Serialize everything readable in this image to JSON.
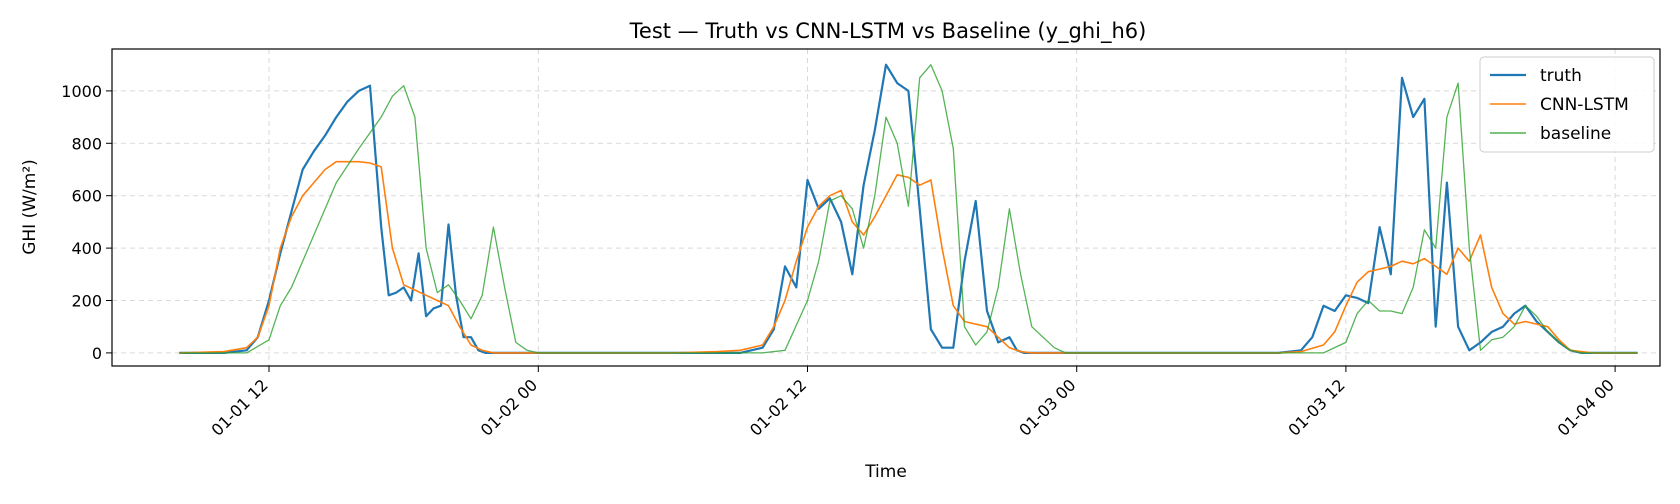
{
  "chart_data": {
    "type": "line",
    "title": "Test — Truth vs CNN-LSTM vs Baseline (y_ghi_h6)",
    "xlabel": "Time",
    "ylabel": "GHI (W/m²)",
    "xlim": [
      "01-01 05",
      "01-04 02"
    ],
    "ylim": [
      -50,
      1160
    ],
    "grid": true,
    "legend_position": "top-right",
    "x_ticks": [
      {
        "label": "01-01 12",
        "hour": 12
      },
      {
        "label": "01-02 00",
        "hour": 24
      },
      {
        "label": "01-02 12",
        "hour": 36
      },
      {
        "label": "01-03 00",
        "hour": 48
      },
      {
        "label": "01-03 12",
        "hour": 60
      },
      {
        "label": "01-04 00",
        "hour": 72
      }
    ],
    "y_ticks": [
      0,
      200,
      400,
      600,
      800,
      1000
    ],
    "series": [
      {
        "name": "truth",
        "color": "#1f77b4",
        "x": [
          "01-01 08:00",
          "01-01 10:00",
          "01-01 11:00",
          "01-01 11:30",
          "01-01 12:00",
          "01-01 12:30",
          "01-01 13:00",
          "01-01 13:30",
          "01-01 14:00",
          "01-01 14:30",
          "01-01 15:00",
          "01-01 15:30",
          "01-01 16:00",
          "01-01 16:30",
          "01-01 17:00",
          "01-01 17:20",
          "01-01 17:40",
          "01-01 18:00",
          "01-01 18:20",
          "01-01 18:40",
          "01-01 19:00",
          "01-01 19:20",
          "01-01 19:40",
          "01-01 20:00",
          "01-01 20:20",
          "01-01 20:40",
          "01-01 21:00",
          "01-01 21:20",
          "01-01 21:40",
          "01-01 22:00",
          "01-01 22:20",
          "01-01 22:40",
          "01-01 23:00",
          "01-01 23:30",
          "01-02 00:00",
          "01-02 06:00",
          "01-02 09:00",
          "01-02 10:00",
          "01-02 10:30",
          "01-02 11:00",
          "01-02 11:30",
          "01-02 12:00",
          "01-02 12:30",
          "01-02 13:00",
          "01-02 13:30",
          "01-02 14:00",
          "01-02 14:30",
          "01-02 15:00",
          "01-02 15:30",
          "01-02 16:00",
          "01-02 16:30",
          "01-02 17:00",
          "01-02 17:30",
          "01-02 18:00",
          "01-02 18:30",
          "01-02 19:00",
          "01-02 19:30",
          "01-02 20:00",
          "01-02 20:30",
          "01-02 21:00",
          "01-02 21:20",
          "01-02 21:40",
          "01-02 22:00",
          "01-02 22:30",
          "01-02 23:00",
          "01-02 23:30",
          "01-03 00:00",
          "01-03 06:00",
          "01-03 09:00",
          "01-03 10:00",
          "01-03 10:30",
          "01-03 11:00",
          "01-03 11:30",
          "01-03 12:00",
          "01-03 12:30",
          "01-03 13:00",
          "01-03 13:30",
          "01-03 14:00",
          "01-03 14:30",
          "01-03 15:00",
          "01-03 15:30",
          "01-03 16:00",
          "01-03 16:30",
          "01-03 17:00",
          "01-03 17:30",
          "01-03 18:00",
          "01-03 18:30",
          "01-03 19:00",
          "01-03 19:30",
          "01-03 20:00",
          "01-03 20:30",
          "01-03 21:00",
          "01-03 21:30",
          "01-03 22:00",
          "01-03 22:30",
          "01-03 23:00",
          "01-03 23:30",
          "01-04 00:00",
          "01-04 01:00"
        ],
        "values": [
          0,
          0,
          10,
          60,
          200,
          380,
          540,
          700,
          770,
          830,
          900,
          960,
          1000,
          1020,
          480,
          220,
          230,
          250,
          200,
          380,
          140,
          170,
          180,
          490,
          220,
          60,
          60,
          10,
          0,
          0,
          0,
          0,
          0,
          0,
          0,
          0,
          0,
          20,
          90,
          330,
          250,
          660,
          550,
          590,
          500,
          300,
          640,
          850,
          1100,
          1030,
          1000,
          550,
          90,
          20,
          20,
          350,
          580,
          160,
          40,
          60,
          10,
          0,
          0,
          0,
          0,
          0,
          0,
          0,
          0,
          10,
          60,
          180,
          160,
          220,
          210,
          190,
          480,
          300,
          1050,
          900,
          970,
          100,
          650,
          100,
          10,
          40,
          80,
          100,
          150,
          180,
          120,
          80,
          40,
          10,
          0,
          0,
          0,
          0,
          0
        ]
      },
      {
        "name": "CNN-LSTM",
        "color": "#ff7f0e",
        "x": [
          "01-01 08:00",
          "01-01 10:00",
          "01-01 11:00",
          "01-01 11:30",
          "01-01 12:00",
          "01-01 12:30",
          "01-01 13:00",
          "01-01 13:30",
          "01-01 14:00",
          "01-01 14:30",
          "01-01 15:00",
          "01-01 15:30",
          "01-01 16:00",
          "01-01 16:30",
          "01-01 17:00",
          "01-01 17:30",
          "01-01 18:00",
          "01-01 18:30",
          "01-01 19:00",
          "01-01 19:30",
          "01-01 20:00",
          "01-01 20:30",
          "01-01 21:00",
          "01-01 21:30",
          "01-01 22:00",
          "01-01 23:00",
          "01-02 00:00",
          "01-02 06:00",
          "01-02 08:00",
          "01-02 09:00",
          "01-02 10:00",
          "01-02 10:30",
          "01-02 11:00",
          "01-02 11:30",
          "01-02 12:00",
          "01-02 12:30",
          "01-02 13:00",
          "01-02 13:30",
          "01-02 14:00",
          "01-02 14:30",
          "01-02 15:00",
          "01-02 15:30",
          "01-02 16:00",
          "01-02 16:30",
          "01-02 17:00",
          "01-02 17:30",
          "01-02 18:00",
          "01-02 18:30",
          "01-02 19:00",
          "01-02 19:30",
          "01-02 20:00",
          "01-02 20:30",
          "01-02 21:00",
          "01-02 21:30",
          "01-02 22:00",
          "01-02 22:30",
          "01-02 23:00",
          "01-03 00:00",
          "01-03 06:00",
          "01-03 09:00",
          "01-03 10:00",
          "01-03 11:00",
          "01-03 11:30",
          "01-03 12:00",
          "01-03 12:30",
          "01-03 13:00",
          "01-03 13:30",
          "01-03 14:00",
          "01-03 14:30",
          "01-03 15:00",
          "01-03 15:30",
          "01-03 16:00",
          "01-03 16:30",
          "01-03 17:00",
          "01-03 17:30",
          "01-03 18:00",
          "01-03 18:30",
          "01-03 19:00",
          "01-03 19:30",
          "01-03 20:00",
          "01-03 20:30",
          "01-03 21:00",
          "01-03 21:30",
          "01-03 22:00",
          "01-03 23:00",
          "01-04 00:00",
          "01-04 01:00"
        ],
        "values": [
          0,
          5,
          20,
          60,
          180,
          400,
          520,
          600,
          650,
          700,
          730,
          730,
          730,
          725,
          710,
          400,
          260,
          240,
          220,
          200,
          180,
          100,
          30,
          10,
          0,
          0,
          0,
          0,
          5,
          10,
          30,
          100,
          200,
          350,
          480,
          560,
          600,
          620,
          500,
          450,
          520,
          600,
          680,
          670,
          640,
          660,
          400,
          180,
          120,
          110,
          100,
          60,
          20,
          5,
          0,
          0,
          0,
          0,
          0,
          0,
          5,
          30,
          80,
          180,
          270,
          310,
          320,
          330,
          350,
          340,
          360,
          330,
          300,
          400,
          350,
          450,
          250,
          150,
          110,
          120,
          110,
          100,
          50,
          10,
          0,
          0,
          0
        ]
      },
      {
        "name": "baseline",
        "color": "#2ca02c",
        "x": [
          "01-01 08:00",
          "01-01 11:00",
          "01-01 12:00",
          "01-01 12:30",
          "01-01 13:00",
          "01-01 14:00",
          "01-01 15:00",
          "01-01 16:00",
          "01-01 17:00",
          "01-01 17:30",
          "01-01 18:00",
          "01-01 18:30",
          "01-01 19:00",
          "01-01 19:30",
          "01-01 20:00",
          "01-01 20:30",
          "01-01 21:00",
          "01-01 21:30",
          "01-01 22:00",
          "01-01 22:30",
          "01-01 23:00",
          "01-01 23:30",
          "01-02 00:00",
          "01-02 06:00",
          "01-02 10:00",
          "01-02 11:00",
          "01-02 12:00",
          "01-02 12:30",
          "01-02 13:00",
          "01-02 13:30",
          "01-02 14:00",
          "01-02 14:30",
          "01-02 15:00",
          "01-02 15:30",
          "01-02 16:00",
          "01-02 16:30",
          "01-02 17:00",
          "01-02 17:30",
          "01-02 18:00",
          "01-02 18:30",
          "01-02 19:00",
          "01-02 19:30",
          "01-02 20:00",
          "01-02 20:30",
          "01-02 21:00",
          "01-02 21:30",
          "01-02 22:00",
          "01-02 22:30",
          "01-02 23:00",
          "01-02 23:30",
          "01-03 00:00",
          "01-03 06:00",
          "01-03 11:00",
          "01-03 12:00",
          "01-03 12:30",
          "01-03 13:00",
          "01-03 13:30",
          "01-03 14:00",
          "01-03 14:30",
          "01-03 15:00",
          "01-03 15:30",
          "01-03 16:00",
          "01-03 16:30",
          "01-03 17:00",
          "01-03 17:30",
          "01-03 18:00",
          "01-03 18:30",
          "01-03 19:00",
          "01-03 19:30",
          "01-03 20:00",
          "01-03 20:30",
          "01-03 21:00",
          "01-03 21:30",
          "01-03 22:00",
          "01-03 22:30",
          "01-03 23:00",
          "01-04 00:00",
          "01-04 01:00"
        ],
        "values": [
          0,
          0,
          50,
          180,
          250,
          450,
          650,
          780,
          900,
          980,
          1020,
          900,
          400,
          230,
          260,
          200,
          130,
          220,
          480,
          250,
          40,
          10,
          0,
          0,
          0,
          10,
          200,
          350,
          580,
          600,
          550,
          400,
          600,
          900,
          800,
          560,
          1050,
          1100,
          1000,
          780,
          100,
          30,
          80,
          250,
          550,
          300,
          100,
          60,
          20,
          0,
          0,
          0,
          0,
          40,
          150,
          200,
          160,
          160,
          150,
          250,
          470,
          400,
          900,
          1030,
          400,
          10,
          50,
          60,
          100,
          180,
          140,
          80,
          40,
          10,
          0,
          0,
          0,
          0
        ]
      }
    ]
  }
}
